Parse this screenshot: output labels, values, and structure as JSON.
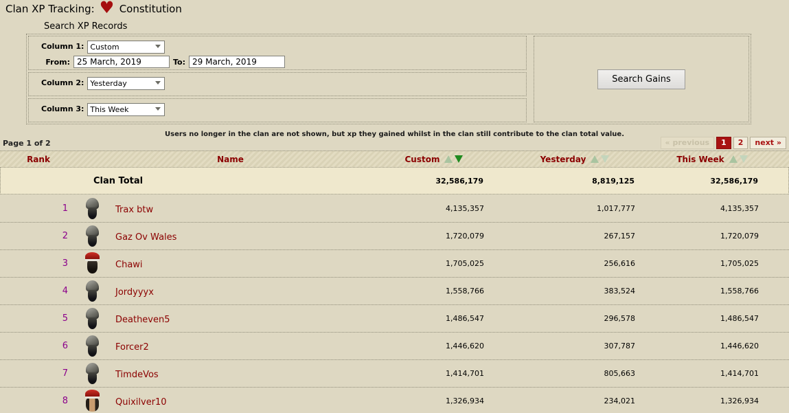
{
  "header": {
    "title": "Clan XP Tracking:",
    "skill": "Constitution",
    "icon": "constitution-heart-icon"
  },
  "search": {
    "heading": "Search XP Records",
    "column1": {
      "label": "Column 1:",
      "value": "Custom",
      "from_label": "From:",
      "from_value": "25 March, 2019",
      "to_label": "To:",
      "to_value": "29 March, 2019"
    },
    "column2": {
      "label": "Column 2:",
      "value": "Yesterday"
    },
    "column3": {
      "label": "Column 3:",
      "value": "This Week"
    },
    "submit_label": "Search Gains"
  },
  "note": "Users no longer in the clan are not shown, but xp they gained whilst in the clan still contribute to the clan total value.",
  "pagination": {
    "page_label": "Page 1 of 2",
    "previous_label": "« previous",
    "pages": [
      "1",
      "2"
    ],
    "current_page": "1",
    "next_label": "next »"
  },
  "table": {
    "headers": {
      "rank": "Rank",
      "name": "Name",
      "col1": "Custom",
      "col2": "Yesterday",
      "col3": "This Week"
    },
    "sort": {
      "active_column": "Custom",
      "direction": "desc"
    },
    "total": {
      "label": "Clan Total",
      "custom": "32,586,179",
      "yesterday": "8,819,125",
      "this_week": "32,586,179"
    },
    "rows": [
      {
        "rank": "1",
        "name": "Trax btw",
        "avatar": "helmet",
        "custom": "4,135,357",
        "yesterday": "1,017,777",
        "this_week": "4,135,357"
      },
      {
        "rank": "2",
        "name": "Gaz Ov Wales",
        "avatar": "helmet",
        "custom": "1,720,079",
        "yesterday": "267,157",
        "this_week": "1,720,079"
      },
      {
        "rank": "3",
        "name": "Chawi",
        "avatar": "santa-dark",
        "custom": "1,705,025",
        "yesterday": "256,616",
        "this_week": "1,705,025"
      },
      {
        "rank": "4",
        "name": "Jordyyyx",
        "avatar": "helmet",
        "custom": "1,558,766",
        "yesterday": "383,524",
        "this_week": "1,558,766"
      },
      {
        "rank": "5",
        "name": "Deatheven5",
        "avatar": "helmet",
        "custom": "1,486,547",
        "yesterday": "296,578",
        "this_week": "1,486,547"
      },
      {
        "rank": "6",
        "name": "Forcer2",
        "avatar": "helmet",
        "custom": "1,446,620",
        "yesterday": "307,787",
        "this_week": "1,446,620"
      },
      {
        "rank": "7",
        "name": "TimdeVos",
        "avatar": "helmet",
        "custom": "1,414,701",
        "yesterday": "805,663",
        "this_week": "1,414,701"
      },
      {
        "rank": "8",
        "name": "Quixilver10",
        "avatar": "santa-face",
        "custom": "1,326,934",
        "yesterday": "234,021",
        "this_week": "1,326,934"
      }
    ]
  },
  "colors": {
    "background": "#ded8c2",
    "total_row_background": "#efe8cd",
    "maroon_text": "#8b0000",
    "rank_purple": "#8b008b",
    "pagination_active_red": "#a81111",
    "sort_active_green": "#1f8a1f",
    "sort_inactive_green": "#a9c4a0",
    "heart_red": "#a50f0f"
  }
}
